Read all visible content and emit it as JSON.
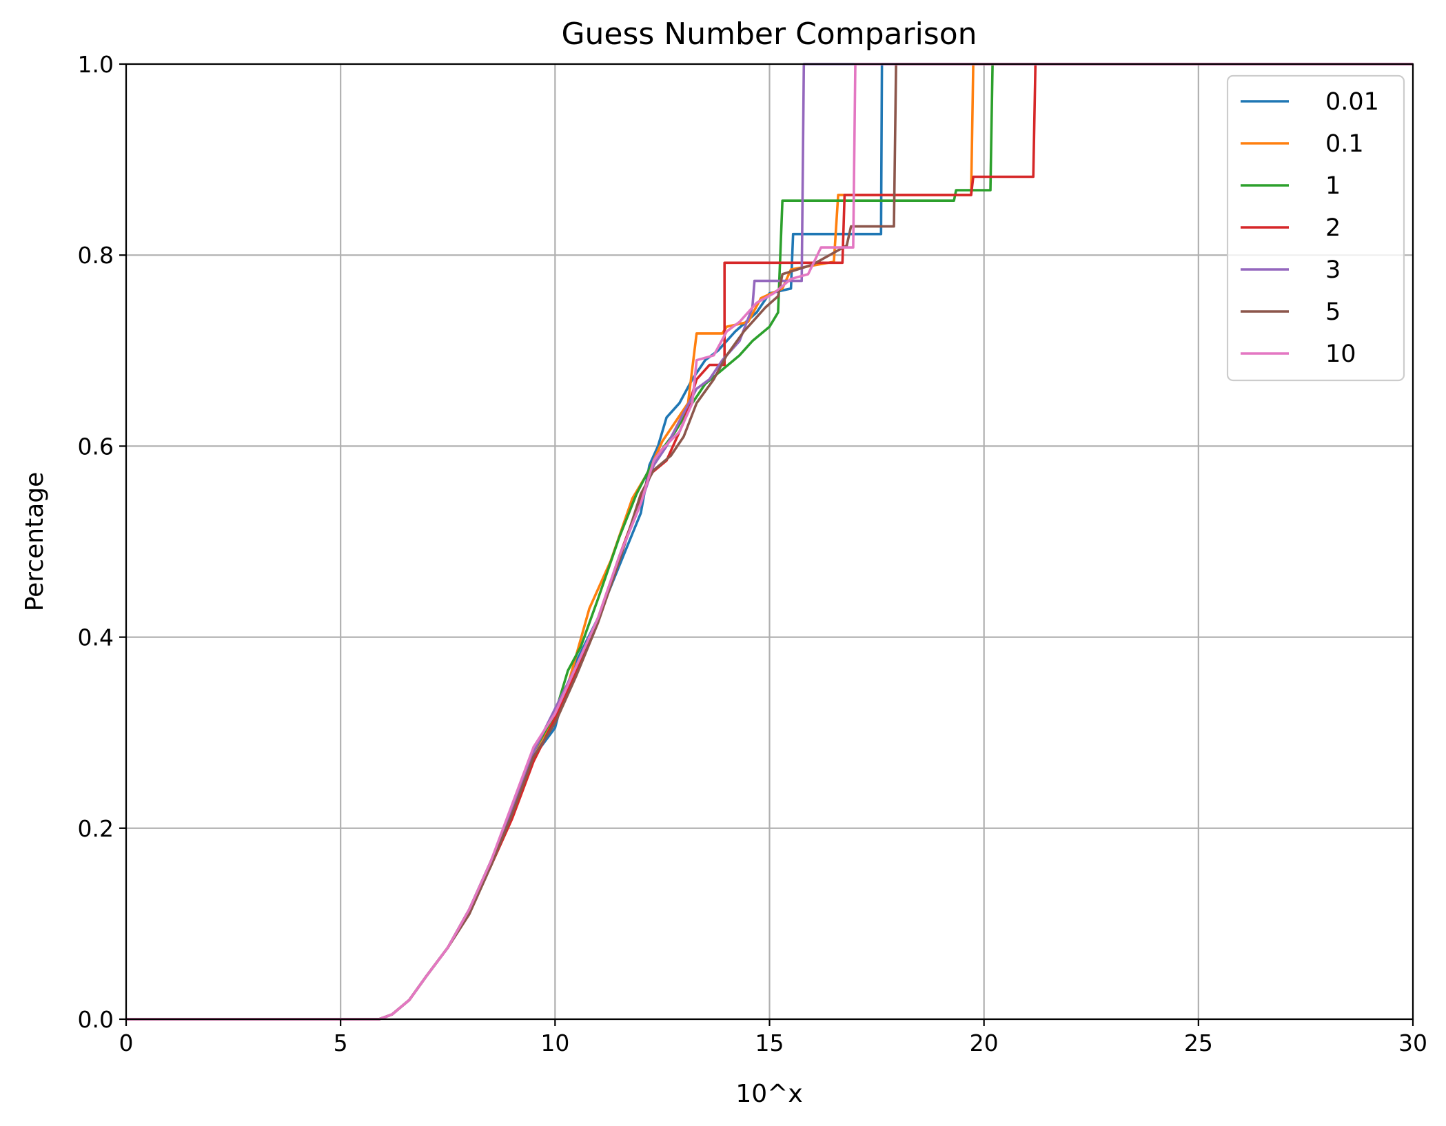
{
  "chart_data": {
    "type": "line",
    "title": "Guess Number Comparison",
    "xlabel": "10^x",
    "ylabel": "Percentage",
    "xlim": [
      0,
      30
    ],
    "ylim": [
      0,
      1
    ],
    "xticks": [
      "0",
      "5",
      "10",
      "15",
      "20",
      "25",
      "30"
    ],
    "yticks": [
      "0.0",
      "0.2",
      "0.4",
      "0.6",
      "0.8",
      "1.0"
    ],
    "grid": true,
    "legend_position": "top-right",
    "series": [
      {
        "name": "0.01",
        "color": "#1f77b4",
        "points": [
          [
            0,
            0
          ],
          [
            5.9,
            0
          ],
          [
            6.2,
            0.005
          ],
          [
            6.6,
            0.02
          ],
          [
            7.0,
            0.045
          ],
          [
            7.5,
            0.075
          ],
          [
            8.0,
            0.115
          ],
          [
            8.5,
            0.165
          ],
          [
            9.0,
            0.22
          ],
          [
            9.5,
            0.275
          ],
          [
            10.0,
            0.305
          ],
          [
            10.2,
            0.34
          ],
          [
            10.5,
            0.375
          ],
          [
            11.0,
            0.42
          ],
          [
            11.5,
            0.475
          ],
          [
            12.0,
            0.53
          ],
          [
            12.2,
            0.58
          ],
          [
            12.4,
            0.6
          ],
          [
            12.6,
            0.63
          ],
          [
            12.9,
            0.645
          ],
          [
            13.2,
            0.67
          ],
          [
            13.5,
            0.69
          ],
          [
            13.8,
            0.7
          ],
          [
            14.2,
            0.72
          ],
          [
            14.7,
            0.74
          ],
          [
            15.0,
            0.76
          ],
          [
            15.5,
            0.765
          ],
          [
            15.55,
            0.822
          ],
          [
            17.6,
            0.822
          ],
          [
            17.62,
            1.0
          ],
          [
            30,
            1.0
          ]
        ]
      },
      {
        "name": "0.1",
        "color": "#ff7f0e",
        "points": [
          [
            0,
            0
          ],
          [
            5.9,
            0
          ],
          [
            6.2,
            0.005
          ],
          [
            6.6,
            0.02
          ],
          [
            7.0,
            0.045
          ],
          [
            7.5,
            0.075
          ],
          [
            8.0,
            0.115
          ],
          [
            8.5,
            0.165
          ],
          [
            9.0,
            0.22
          ],
          [
            9.5,
            0.28
          ],
          [
            10.0,
            0.315
          ],
          [
            10.3,
            0.35
          ],
          [
            10.8,
            0.43
          ],
          [
            11.3,
            0.48
          ],
          [
            11.8,
            0.545
          ],
          [
            12.2,
            0.575
          ],
          [
            12.5,
            0.605
          ],
          [
            12.8,
            0.625
          ],
          [
            13.1,
            0.645
          ],
          [
            13.3,
            0.718
          ],
          [
            13.9,
            0.718
          ],
          [
            14.0,
            0.725
          ],
          [
            14.5,
            0.73
          ],
          [
            14.8,
            0.755
          ],
          [
            15.3,
            0.765
          ],
          [
            15.5,
            0.785
          ],
          [
            16.5,
            0.793
          ],
          [
            16.6,
            0.863
          ],
          [
            19.7,
            0.863
          ],
          [
            19.75,
            1.0
          ],
          [
            30,
            1.0
          ]
        ]
      },
      {
        "name": "1",
        "color": "#2ca02c",
        "points": [
          [
            0,
            0
          ],
          [
            5.9,
            0
          ],
          [
            6.2,
            0.005
          ],
          [
            6.6,
            0.02
          ],
          [
            7.0,
            0.045
          ],
          [
            7.5,
            0.075
          ],
          [
            8.0,
            0.115
          ],
          [
            8.5,
            0.165
          ],
          [
            9.0,
            0.22
          ],
          [
            9.5,
            0.28
          ],
          [
            10.0,
            0.32
          ],
          [
            10.3,
            0.365
          ],
          [
            10.6,
            0.39
          ],
          [
            11.0,
            0.44
          ],
          [
            11.5,
            0.505
          ],
          [
            11.9,
            0.55
          ],
          [
            12.3,
            0.585
          ],
          [
            12.8,
            0.615
          ],
          [
            13.2,
            0.645
          ],
          [
            13.5,
            0.665
          ],
          [
            13.9,
            0.68
          ],
          [
            14.3,
            0.695
          ],
          [
            14.6,
            0.71
          ],
          [
            15.0,
            0.725
          ],
          [
            15.2,
            0.74
          ],
          [
            15.3,
            0.857
          ],
          [
            19.3,
            0.857
          ],
          [
            19.35,
            0.868
          ],
          [
            20.15,
            0.868
          ],
          [
            20.2,
            1.0
          ],
          [
            30,
            1.0
          ]
        ]
      },
      {
        "name": "2",
        "color": "#d62728",
        "points": [
          [
            0,
            0
          ],
          [
            5.9,
            0
          ],
          [
            6.2,
            0.005
          ],
          [
            6.6,
            0.02
          ],
          [
            7.0,
            0.045
          ],
          [
            7.5,
            0.075
          ],
          [
            8.0,
            0.115
          ],
          [
            8.5,
            0.16
          ],
          [
            9.0,
            0.21
          ],
          [
            9.5,
            0.27
          ],
          [
            10.0,
            0.315
          ],
          [
            10.5,
            0.365
          ],
          [
            11.0,
            0.42
          ],
          [
            11.5,
            0.485
          ],
          [
            12.0,
            0.545
          ],
          [
            12.2,
            0.57
          ],
          [
            12.6,
            0.585
          ],
          [
            13.0,
            0.625
          ],
          [
            13.3,
            0.67
          ],
          [
            13.6,
            0.685
          ],
          [
            13.95,
            0.685
          ],
          [
            13.95,
            0.792
          ],
          [
            16.7,
            0.792
          ],
          [
            16.75,
            0.863
          ],
          [
            19.7,
            0.863
          ],
          [
            19.75,
            0.882
          ],
          [
            21.15,
            0.882
          ],
          [
            21.2,
            1.0
          ],
          [
            30,
            1.0
          ]
        ]
      },
      {
        "name": "3",
        "color": "#9467bd",
        "points": [
          [
            0,
            0
          ],
          [
            5.9,
            0
          ],
          [
            6.2,
            0.005
          ],
          [
            6.6,
            0.02
          ],
          [
            7.0,
            0.045
          ],
          [
            7.5,
            0.075
          ],
          [
            8.0,
            0.115
          ],
          [
            8.5,
            0.165
          ],
          [
            9.0,
            0.22
          ],
          [
            9.5,
            0.28
          ],
          [
            10.0,
            0.325
          ],
          [
            10.5,
            0.37
          ],
          [
            11.0,
            0.42
          ],
          [
            11.5,
            0.485
          ],
          [
            12.0,
            0.54
          ],
          [
            12.3,
            0.58
          ],
          [
            12.6,
            0.6
          ],
          [
            13.0,
            0.635
          ],
          [
            13.3,
            0.66
          ],
          [
            13.6,
            0.67
          ],
          [
            13.9,
            0.69
          ],
          [
            14.3,
            0.71
          ],
          [
            14.6,
            0.745
          ],
          [
            14.65,
            0.773
          ],
          [
            15.5,
            0.773
          ],
          [
            15.75,
            0.773
          ],
          [
            15.8,
            1.0
          ],
          [
            30,
            1.0
          ]
        ]
      },
      {
        "name": "5",
        "color": "#8c564b",
        "points": [
          [
            0,
            0
          ],
          [
            5.9,
            0
          ],
          [
            6.2,
            0.005
          ],
          [
            6.6,
            0.02
          ],
          [
            7.0,
            0.045
          ],
          [
            7.5,
            0.075
          ],
          [
            8.0,
            0.11
          ],
          [
            8.5,
            0.16
          ],
          [
            9.0,
            0.215
          ],
          [
            9.5,
            0.275
          ],
          [
            10.0,
            0.31
          ],
          [
            10.5,
            0.36
          ],
          [
            11.0,
            0.415
          ],
          [
            11.5,
            0.48
          ],
          [
            12.0,
            0.55
          ],
          [
            12.3,
            0.575
          ],
          [
            12.7,
            0.59
          ],
          [
            13.0,
            0.61
          ],
          [
            13.3,
            0.645
          ],
          [
            13.7,
            0.67
          ],
          [
            14.0,
            0.695
          ],
          [
            14.4,
            0.72
          ],
          [
            14.9,
            0.745
          ],
          [
            15.2,
            0.757
          ],
          [
            15.3,
            0.78
          ],
          [
            16.0,
            0.79
          ],
          [
            16.8,
            0.81
          ],
          [
            16.9,
            0.83
          ],
          [
            17.9,
            0.83
          ],
          [
            17.95,
            1.0
          ],
          [
            30,
            1.0
          ]
        ]
      },
      {
        "name": "10",
        "color": "#e377c2",
        "points": [
          [
            0,
            0
          ],
          [
            5.9,
            0
          ],
          [
            6.2,
            0.005
          ],
          [
            6.6,
            0.02
          ],
          [
            7.0,
            0.045
          ],
          [
            7.5,
            0.075
          ],
          [
            8.0,
            0.115
          ],
          [
            8.5,
            0.165
          ],
          [
            9.0,
            0.225
          ],
          [
            9.5,
            0.285
          ],
          [
            10.0,
            0.32
          ],
          [
            10.5,
            0.37
          ],
          [
            11.0,
            0.42
          ],
          [
            11.5,
            0.485
          ],
          [
            12.0,
            0.54
          ],
          [
            12.3,
            0.585
          ],
          [
            12.5,
            0.597
          ],
          [
            12.9,
            0.615
          ],
          [
            13.2,
            0.645
          ],
          [
            13.3,
            0.69
          ],
          [
            13.7,
            0.695
          ],
          [
            14.0,
            0.72
          ],
          [
            14.3,
            0.73
          ],
          [
            14.7,
            0.75
          ],
          [
            15.1,
            0.76
          ],
          [
            15.5,
            0.775
          ],
          [
            15.9,
            0.78
          ],
          [
            16.2,
            0.808
          ],
          [
            16.95,
            0.808
          ],
          [
            17.0,
            1.0
          ],
          [
            30,
            1.0
          ]
        ]
      }
    ]
  }
}
